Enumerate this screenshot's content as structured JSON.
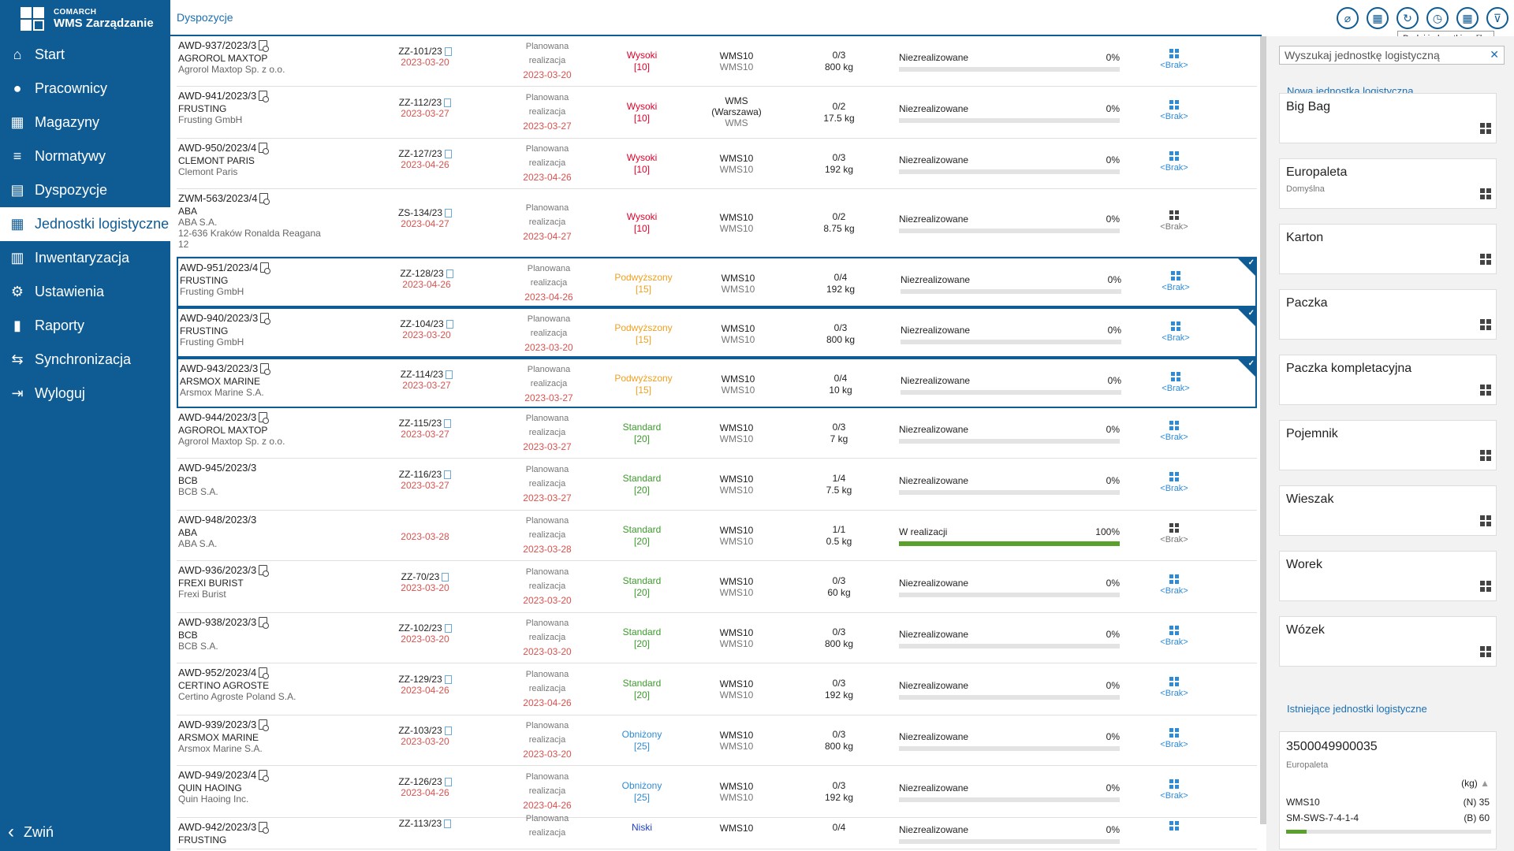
{
  "app": {
    "brand_top": "COMARCH",
    "brand_name": "WMS Zarządzanie"
  },
  "nav": [
    {
      "label": "Start",
      "icon": "home-icon"
    },
    {
      "label": "Pracownicy",
      "icon": "user-icon"
    },
    {
      "label": "Magazyny",
      "icon": "warehouse-icon"
    },
    {
      "label": "Normatywy",
      "icon": "chart-icon"
    },
    {
      "label": "Dyspozycje",
      "icon": "document-icon"
    },
    {
      "label": "Jednostki logistyczne",
      "icon": "grid-icon",
      "active": true
    },
    {
      "label": "Inwentaryzacja",
      "icon": "clipboard-icon"
    },
    {
      "label": "Ustawienia",
      "icon": "gear-icon"
    },
    {
      "label": "Raporty",
      "icon": "bar-chart-icon"
    },
    {
      "label": "Synchronizacja",
      "icon": "sync-icon"
    },
    {
      "label": "Wyloguj",
      "icon": "logout-icon"
    }
  ],
  "collapse_label": "Zwiń",
  "header": {
    "title": "Dyspozycje",
    "tooltip": "Dodaj jednostki z pliku"
  },
  "colors": {
    "accent": "#0f5b93",
    "red": "#d9534f",
    "high": "#e0002a",
    "raised": "#f0a020",
    "standard": "#3a9a2a",
    "lowered": "#2e8bd6",
    "low": "#1e40c8",
    "progress": "#5aa02c"
  },
  "rows": [
    {
      "doc": "AWD-937/2023/3",
      "cust": "AGROROL MAXTOP",
      "full": "Agrorol Maxtop Sp. z o.o.",
      "zz": "ZZ-101/23",
      "zzdate": "2023-03-20",
      "plan1": "Planowana",
      "plan2": "realizacja",
      "plandate": "2023-03-20",
      "pri": "Wysoki",
      "prinum": "[10]",
      "pricolor": "high",
      "wh1": "WMS10",
      "wh2": "",
      "wh3": "WMS10",
      "qty": "0/3",
      "kg": "800 kg",
      "status": "Niezrealizowane",
      "pct": "0%",
      "progress": 0,
      "lu": "<Brak>",
      "h": 64,
      "sel": false,
      "luactive": true
    },
    {
      "doc": "AWD-941/2023/3",
      "cust": "FRUSTING",
      "full": "Frusting GmbH",
      "zz": "ZZ-112/23",
      "zzdate": "2023-03-27",
      "plan1": "Planowana",
      "plan2": "realizacja",
      "plandate": "2023-03-27",
      "pri": "Wysoki",
      "prinum": "[10]",
      "pricolor": "high",
      "wh1": "WMS",
      "wh2": "(Warszawa)",
      "wh3": "WMS",
      "qty": "0/2",
      "kg": "17.5 kg",
      "status": "Niezrealizowane",
      "pct": "0%",
      "progress": 0,
      "lu": "<Brak>",
      "h": 66,
      "sel": false,
      "luactive": true
    },
    {
      "doc": "AWD-950/2023/4",
      "cust": "CLEMONT PARIS",
      "full": "Clemont Paris",
      "zz": "ZZ-127/23",
      "zzdate": "2023-04-26",
      "plan1": "Planowana",
      "plan2": "realizacja",
      "plandate": "2023-04-26",
      "pri": "Wysoki",
      "prinum": "[10]",
      "pricolor": "high",
      "wh1": "WMS10",
      "wh2": "",
      "wh3": "WMS10",
      "qty": "0/3",
      "kg": "192 kg",
      "status": "Niezrealizowane",
      "pct": "0%",
      "progress": 0,
      "lu": "<Brak>",
      "h": 64,
      "sel": false,
      "luactive": true
    },
    {
      "doc": "ZWM-563/2023/4",
      "cust": "ABA",
      "full": "ABA S.A.",
      "addr1": "12-636 Kraków Ronalda Reagana",
      "addr2": "12",
      "zz": "ZS-134/23",
      "zzdate": "2023-04-27",
      "plan1": "Planowana",
      "plan2": "realizacja",
      "plandate": "2023-04-27",
      "pri": "Wysoki",
      "prinum": "[10]",
      "pricolor": "high",
      "wh1": "WMS10",
      "wh2": "",
      "wh3": "WMS10",
      "qty": "0/2",
      "kg": "8.75 kg",
      "status": "Niezrealizowane",
      "pct": "0%",
      "progress": 0,
      "lu": "<Brak>",
      "h": 86,
      "sel": false,
      "luactive": false
    },
    {
      "doc": "AWD-951/2023/4",
      "cust": "FRUSTING",
      "full": "Frusting GmbH",
      "zz": "ZZ-128/23",
      "zzdate": "2023-04-26",
      "plan1": "Planowana",
      "plan2": "realizacja",
      "plandate": "2023-04-26",
      "pri": "Podwyższony",
      "prinum": "[15]",
      "pricolor": "raised",
      "wh1": "WMS10",
      "wh2": "",
      "wh3": "WMS10",
      "qty": "0/4",
      "kg": "192 kg",
      "status": "Niezrealizowane",
      "pct": "0%",
      "progress": 0,
      "lu": "<Brak>",
      "h": 64,
      "sel": true,
      "luactive": true
    },
    {
      "doc": "AWD-940/2023/3",
      "cust": "FRUSTING",
      "full": "Frusting GmbH",
      "zz": "ZZ-104/23",
      "zzdate": "2023-03-20",
      "plan1": "Planowana",
      "plan2": "realizacja",
      "plandate": "2023-03-20",
      "pri": "Podwyższony",
      "prinum": "[15]",
      "pricolor": "raised",
      "wh1": "WMS10",
      "wh2": "",
      "wh3": "WMS10",
      "qty": "0/3",
      "kg": "800 kg",
      "status": "Niezrealizowane",
      "pct": "0%",
      "progress": 0,
      "lu": "<Brak>",
      "h": 64,
      "sel": true,
      "luactive": true
    },
    {
      "doc": "AWD-943/2023/3",
      "cust": "ARSMOX MARINE",
      "full": "Arsmox Marine S.A.",
      "zz": "ZZ-114/23",
      "zzdate": "2023-03-27",
      "plan1": "Planowana",
      "plan2": "realizacja",
      "plandate": "2023-03-27",
      "pri": "Podwyższony",
      "prinum": "[15]",
      "pricolor": "raised",
      "wh1": "WMS10",
      "wh2": "",
      "wh3": "WMS10",
      "qty": "0/4",
      "kg": "10 kg",
      "status": "Niezrealizowane",
      "pct": "0%",
      "progress": 0,
      "lu": "<Brak>",
      "h": 64,
      "sel": true,
      "luactive": true
    },
    {
      "doc": "AWD-944/2023/3",
      "cust": "AGROROL MAXTOP",
      "full": "Agrorol Maxtop Sp. z o.o.",
      "zz": "ZZ-115/23",
      "zzdate": "2023-03-27",
      "plan1": "Planowana",
      "plan2": "realizacja",
      "plandate": "2023-03-27",
      "pri": "Standard",
      "prinum": "[20]",
      "pricolor": "standard",
      "wh1": "WMS10",
      "wh2": "",
      "wh3": "WMS10",
      "qty": "0/3",
      "kg": "7 kg",
      "status": "Niezrealizowane",
      "pct": "0%",
      "progress": 0,
      "lu": "<Brak>",
      "h": 64,
      "sel": false,
      "luactive": true
    },
    {
      "doc": "AWD-945/2023/3",
      "cust": "BCB",
      "full": "BCB S.A.",
      "zz": "ZZ-116/23",
      "zzdate": "2023-03-27",
      "plan1": "Planowana",
      "plan2": "realizacja",
      "plandate": "2023-03-27",
      "pri": "Standard",
      "prinum": "[20]",
      "pricolor": "standard",
      "wh1": "WMS10",
      "wh2": "",
      "wh3": "WMS10",
      "qty": "1/4",
      "kg": "7.5 kg",
      "status": "Niezrealizowane",
      "pct": "0%",
      "progress": 0,
      "lu": "<Brak>",
      "h": 66,
      "sel": false,
      "luactive": true,
      "nofileicon": true
    },
    {
      "doc": "AWD-948/2023/3",
      "cust": "ABA",
      "full": "ABA S.A.",
      "zz": "",
      "zzdate": "2023-03-28",
      "plan1": "Planowana",
      "plan2": "realizacja",
      "plandate": "2023-03-28",
      "pri": "Standard",
      "prinum": "[20]",
      "pricolor": "standard",
      "wh1": "WMS10",
      "wh2": "",
      "wh3": "WMS10",
      "qty": "1/1",
      "kg": "0.5 kg",
      "status": "W realizacji",
      "pct": "100%",
      "progress": 1,
      "lu": "<Brak>",
      "h": 64,
      "sel": false,
      "luactive": false,
      "nofileicon": true
    },
    {
      "doc": "AWD-936/2023/3",
      "cust": "FREXI BURIST",
      "full": "Frexi Burist",
      "zz": "ZZ-70/23",
      "zzdate": "2023-03-20",
      "plan1": "Planowana",
      "plan2": "realizacja",
      "plandate": "2023-03-20",
      "pri": "Standard",
      "prinum": "[20]",
      "pricolor": "standard",
      "wh1": "WMS10",
      "wh2": "",
      "wh3": "WMS10",
      "qty": "0/3",
      "kg": "60 kg",
      "status": "Niezrealizowane",
      "pct": "0%",
      "progress": 0,
      "lu": "<Brak>",
      "h": 66,
      "sel": false,
      "luactive": true
    },
    {
      "doc": "AWD-938/2023/3",
      "cust": "BCB",
      "full": "BCB S.A.",
      "zz": "ZZ-102/23",
      "zzdate": "2023-03-20",
      "plan1": "Planowana",
      "plan2": "realizacja",
      "plandate": "2023-03-20",
      "pri": "Standard",
      "prinum": "[20]",
      "pricolor": "standard",
      "wh1": "WMS10",
      "wh2": "",
      "wh3": "WMS10",
      "qty": "0/3",
      "kg": "800 kg",
      "status": "Niezrealizowane",
      "pct": "0%",
      "progress": 0,
      "lu": "<Brak>",
      "h": 64,
      "sel": false,
      "luactive": true
    },
    {
      "doc": "AWD-952/2023/4",
      "cust": "CERTINO AGROSTE",
      "full": "Certino Agroste Poland S.A.",
      "zz": "ZZ-129/23",
      "zzdate": "2023-04-26",
      "plan1": "Planowana",
      "plan2": "realizacja",
      "plandate": "2023-04-26",
      "pri": "Standard",
      "prinum": "[20]",
      "pricolor": "standard",
      "wh1": "WMS10",
      "wh2": "",
      "wh3": "WMS10",
      "qty": "0/3",
      "kg": "192 kg",
      "status": "Niezrealizowane",
      "pct": "0%",
      "progress": 0,
      "lu": "<Brak>",
      "h": 66,
      "sel": false,
      "luactive": true
    },
    {
      "doc": "AWD-939/2023/3",
      "cust": "ARSMOX MARINE",
      "full": "Arsmox Marine S.A.",
      "zz": "ZZ-103/23",
      "zzdate": "2023-03-20",
      "plan1": "Planowana",
      "plan2": "realizacja",
      "plandate": "2023-03-20",
      "pri": "Obniżony",
      "prinum": "[25]",
      "pricolor": "lowered",
      "wh1": "WMS10",
      "wh2": "",
      "wh3": "WMS10",
      "qty": "0/3",
      "kg": "800 kg",
      "status": "Niezrealizowane",
      "pct": "0%",
      "progress": 0,
      "lu": "<Brak>",
      "h": 64,
      "sel": false,
      "luactive": true
    },
    {
      "doc": "AWD-949/2023/4",
      "cust": "QUIN HAOING",
      "full": "Quin Haoing Inc.",
      "zz": "ZZ-126/23",
      "zzdate": "2023-04-26",
      "plan1": "Planowana",
      "plan2": "realizacja",
      "plandate": "2023-04-26",
      "pri": "Obniżony",
      "prinum": "[25]",
      "pricolor": "lowered",
      "wh1": "WMS10",
      "wh2": "",
      "wh3": "WMS10",
      "qty": "0/3",
      "kg": "192 kg",
      "status": "Niezrealizowane",
      "pct": "0%",
      "progress": 0,
      "lu": "<Brak>",
      "h": 66,
      "sel": false,
      "luactive": true
    },
    {
      "doc": "AWD-942/2023/3",
      "cust": "FRUSTING",
      "full": "",
      "zz": "ZZ-113/23",
      "zzdate": "",
      "plan1": "Planowana",
      "plan2": "realizacja",
      "plandate": "",
      "pri": "Niski",
      "prinum": "",
      "pricolor": "low",
      "wh1": "WMS10",
      "wh2": "",
      "wh3": "",
      "qty": "0/4",
      "kg": "",
      "status": "Niezrealizowane",
      "pct": "0%",
      "progress": 0,
      "lu": "",
      "h": 40,
      "sel": false,
      "luactive": true
    }
  ],
  "right_panel": {
    "search_placeholder": "Wyszukaj jednostkę logistyczną",
    "new_link": "Nowa jednostka logistyczna",
    "types": [
      {
        "name": "Big Bag",
        "sub": ""
      },
      {
        "name": "Europaleta",
        "sub": "Domyślna"
      },
      {
        "name": "Karton",
        "sub": ""
      },
      {
        "name": "Paczka",
        "sub": ""
      },
      {
        "name": "Paczka kompletacyjna",
        "sub": ""
      },
      {
        "name": "Pojemnik",
        "sub": ""
      },
      {
        "name": "Wieszak",
        "sub": ""
      },
      {
        "name": "Worek",
        "sub": ""
      },
      {
        "name": "Wózek",
        "sub": ""
      }
    ],
    "existing_link": "Istniejące jednostki logistyczne",
    "existing": {
      "code": "3500049900035",
      "type": "Europaleta",
      "kg": "(kg)",
      "wh": "WMS10",
      "n": "(N) 35",
      "loc": "SM-SWS-7-4-1-4",
      "b": "(B) 60",
      "fill": 0.1
    }
  }
}
